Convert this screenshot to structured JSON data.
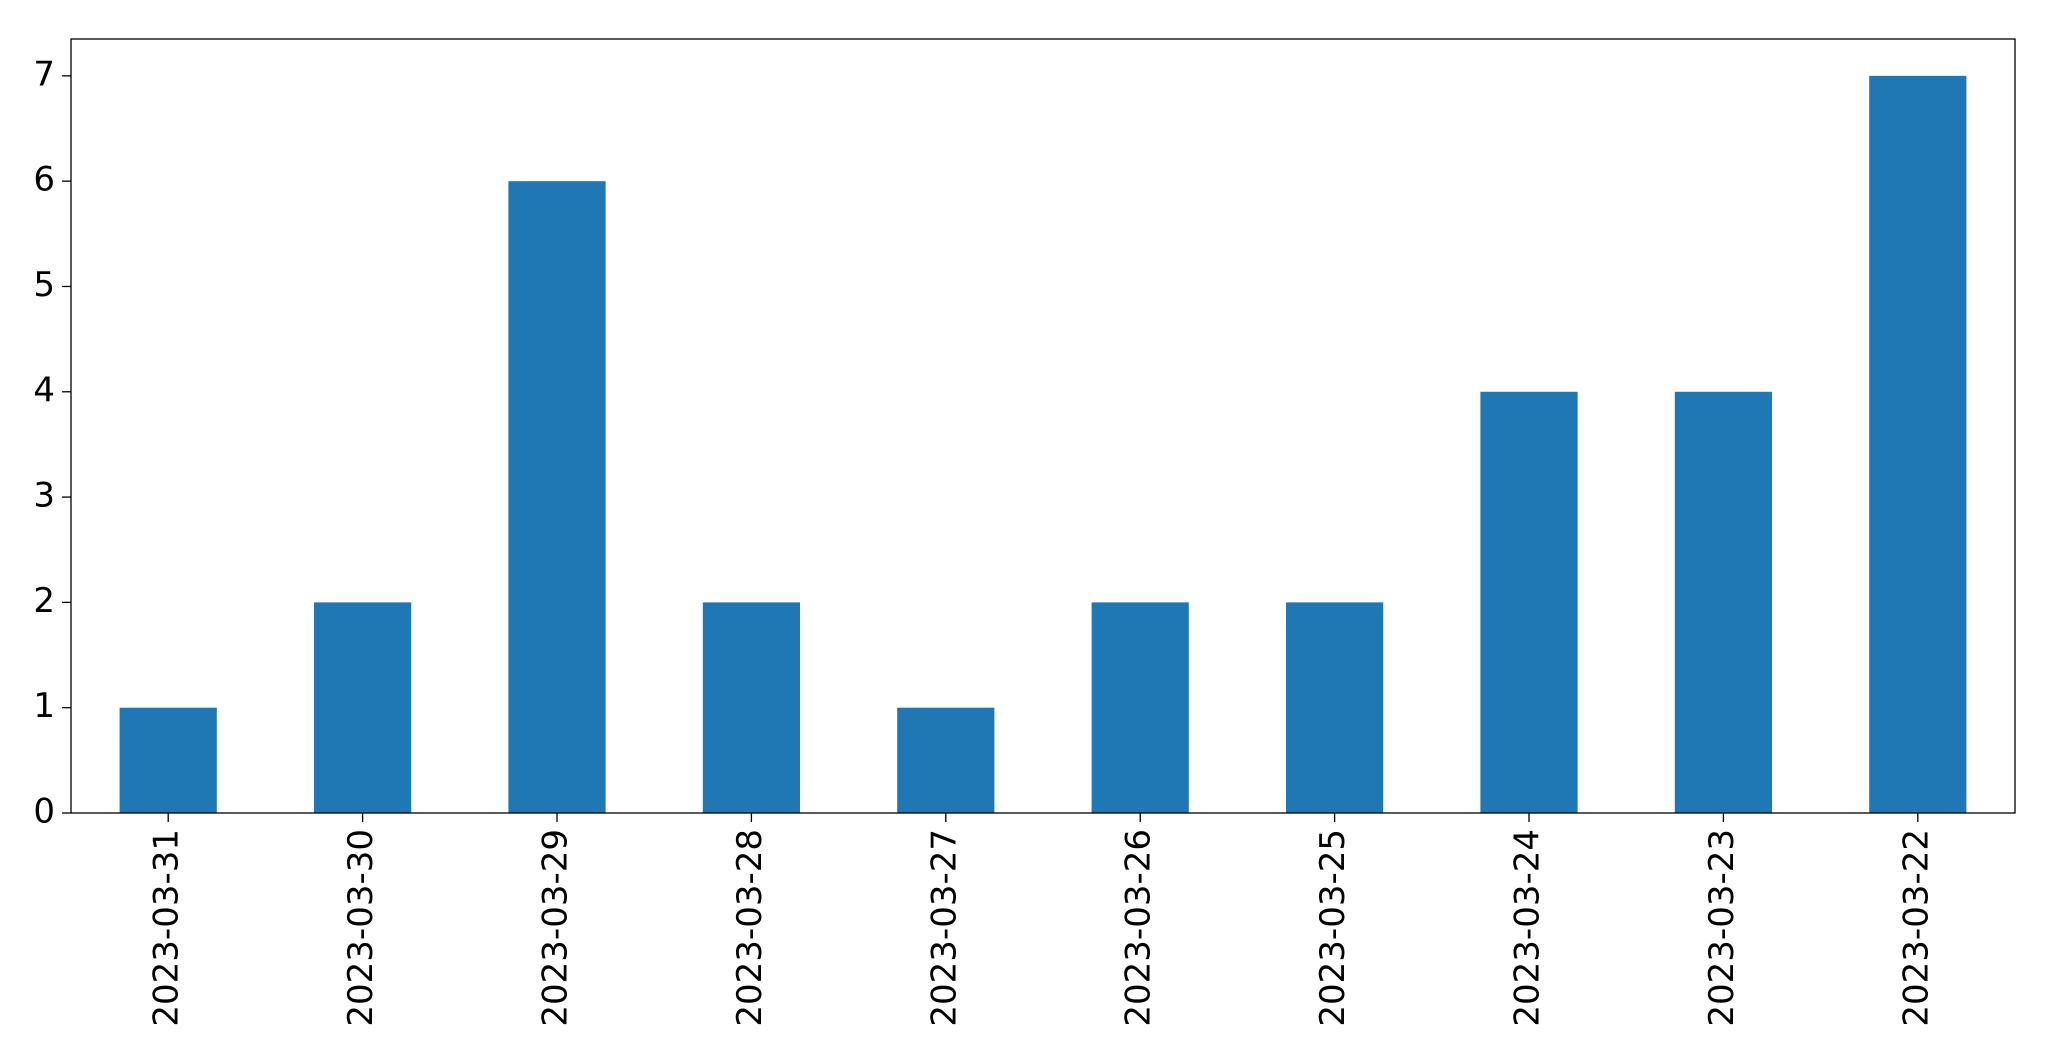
{
  "chart_data": {
    "type": "bar",
    "categories": [
      "2023-03-31",
      "2023-03-30",
      "2023-03-29",
      "2023-03-28",
      "2023-03-27",
      "2023-03-26",
      "2023-03-25",
      "2023-03-24",
      "2023-03-23",
      "2023-03-22"
    ],
    "values": [
      1,
      2,
      6,
      2,
      1,
      2,
      2,
      4,
      4,
      7
    ],
    "color": "#1f77b4",
    "ylim": [
      0,
      7.35
    ],
    "yticks": [
      0,
      1,
      2,
      3,
      4,
      5,
      6,
      7
    ],
    "grid": false
  }
}
